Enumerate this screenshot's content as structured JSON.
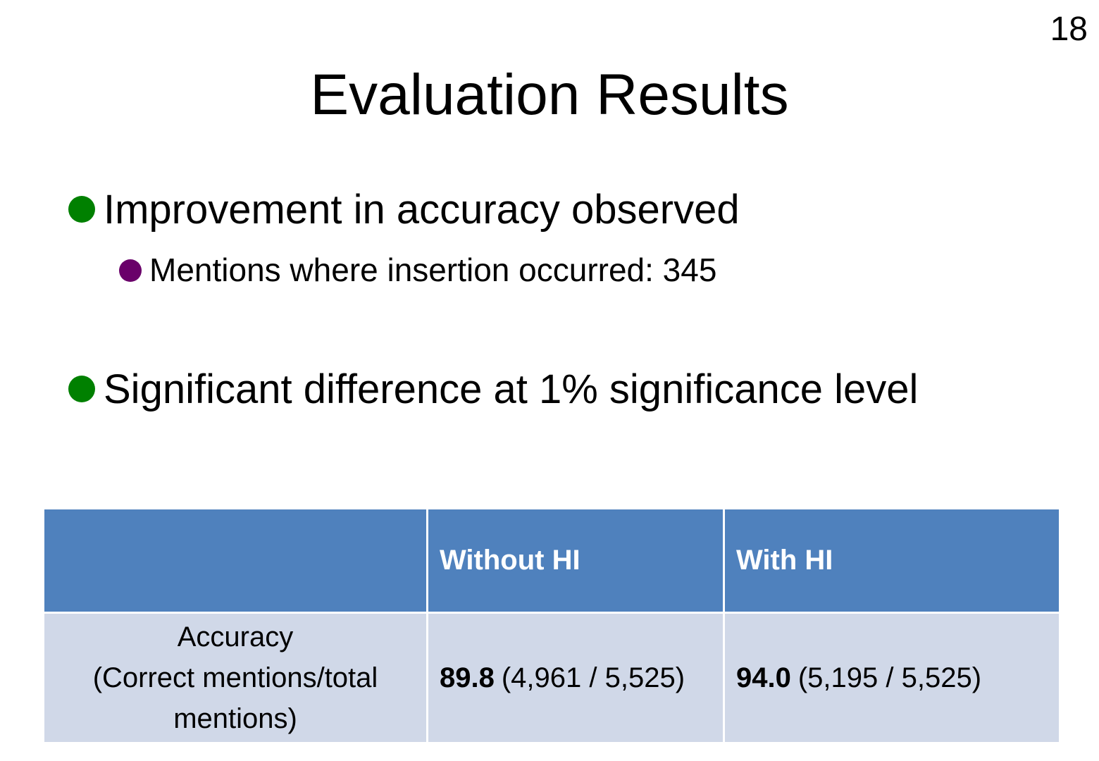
{
  "page_number": "18",
  "title": "Evaluation Results",
  "bullets": [
    {
      "text": "Improvement in accuracy observed",
      "sub": [
        "Mentions where insertion occurred: 345"
      ]
    },
    {
      "text": "Significant difference at 1% significance level"
    }
  ],
  "table": {
    "columns": [
      "Without HI",
      "With HI"
    ],
    "rows": [
      {
        "label": "Accuracy",
        "label_note": "(Correct mentions/total mentions)",
        "cells": [
          {
            "value": "89.8",
            "detail": "(4,961 / 5,525)"
          },
          {
            "value": "94.0",
            "detail": "(5,195 / 5,525)"
          }
        ]
      }
    ]
  }
}
